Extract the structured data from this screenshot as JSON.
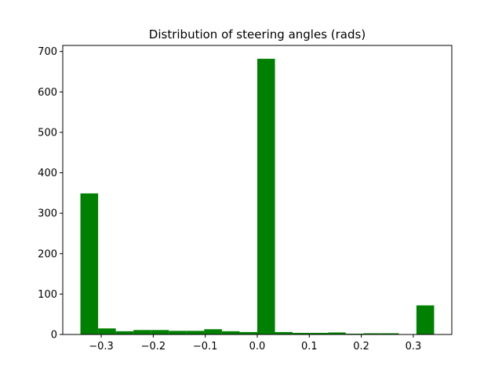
{
  "chart_data": {
    "type": "bar",
    "title": "Distribution of steering angles (rads)",
    "xlabel": "",
    "ylabel": "",
    "xlim": [
      -0.374,
      0.374
    ],
    "ylim": [
      0,
      715
    ],
    "bin_edges": [
      -0.34,
      -0.306,
      -0.272,
      -0.238,
      -0.204,
      -0.17,
      -0.136,
      -0.102,
      -0.068,
      -0.034,
      0.0,
      0.034,
      0.068,
      0.102,
      0.136,
      0.17,
      0.204,
      0.238,
      0.272,
      0.306,
      0.34
    ],
    "values": [
      349,
      15,
      8,
      11,
      11,
      9,
      9,
      13,
      8,
      6,
      682,
      6,
      4,
      4,
      5,
      2,
      3,
      3,
      0,
      72
    ],
    "x_ticks": [
      {
        "value": -0.3,
        "label": "−0.3"
      },
      {
        "value": -0.2,
        "label": "−0.2"
      },
      {
        "value": -0.1,
        "label": "−0.1"
      },
      {
        "value": 0.0,
        "label": "0.0"
      },
      {
        "value": 0.1,
        "label": "0.1"
      },
      {
        "value": 0.2,
        "label": "0.2"
      },
      {
        "value": 0.3,
        "label": "0.3"
      }
    ],
    "y_ticks": [
      {
        "value": 0,
        "label": "0"
      },
      {
        "value": 100,
        "label": "100"
      },
      {
        "value": 200,
        "label": "200"
      },
      {
        "value": 300,
        "label": "300"
      },
      {
        "value": 400,
        "label": "400"
      },
      {
        "value": 500,
        "label": "500"
      },
      {
        "value": 600,
        "label": "600"
      },
      {
        "value": 700,
        "label": "700"
      }
    ],
    "grid": false,
    "legend": "none",
    "bar_color": "#008000"
  }
}
